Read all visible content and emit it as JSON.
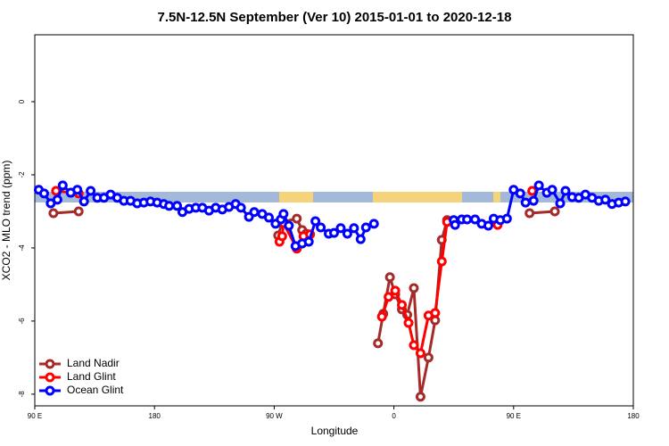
{
  "chart_data": {
    "type": "line",
    "title": "7.5N-12.5N September (Ver 10)   2015-01-01 to 2020-12-18",
    "x_label": "Longitude",
    "y_label": "XCO2 - MLO trend (ppm)",
    "xlim": [
      90,
      540
    ],
    "ylim": [
      -8.32,
      1.83
    ],
    "xticks": [
      {
        "value": 90,
        "label": "90 E"
      },
      180,
      {
        "value": 270,
        "label": "90 W"
      },
      {
        "value": 360,
        "label": "0"
      },
      {
        "value": 450,
        "label": "90 E"
      },
      {
        "value": 540,
        "label": "180"
      }
    ],
    "yticks": [
      0,
      -2,
      -4,
      -6,
      -8
    ],
    "legend": "bottom-left",
    "series": [
      {
        "name": "Land Nadir",
        "color": "#a52a2a",
        "x": [
          104,
          123,
          200,
          273,
          276,
          287,
          291,
          294,
          320,
          348,
          352,
          357,
          361,
          366,
          370,
          375,
          380,
          386,
          391,
          396,
          400,
          430,
          462,
          481
        ],
        "values": [
          -3.05,
          -3.0,
          null,
          -3.66,
          -3.29,
          -3.2,
          -3.51,
          -3.61,
          null,
          -6.61,
          -5.8,
          -4.8,
          -5.27,
          -5.68,
          -5.83,
          -5.1,
          -8.07,
          -7.0,
          -5.98,
          -3.78,
          -3.24,
          null,
          -3.05,
          -3.0
        ]
      },
      {
        "name": "Land Glint",
        "color": "#ff0000",
        "x": [
          106,
          123,
          200,
          274,
          276,
          277,
          287,
          292,
          297,
          320,
          351,
          356,
          361,
          366,
          371,
          375,
          380,
          386,
          391,
          396,
          400,
          406,
          420,
          438,
          450,
          464
        ],
        "values": [
          -2.44,
          -2.51,
          null,
          -3.83,
          -3.68,
          -3.32,
          -4.02,
          -3.68,
          -3.63,
          null,
          -5.88,
          -5.34,
          -5.17,
          -5.56,
          -6.05,
          -6.66,
          -6.88,
          -5.85,
          -5.78,
          -4.37,
          -3.29,
          -3.29,
          null,
          -3.37,
          null,
          -2.44
        ]
      },
      {
        "name": "Ocean Glint",
        "color": "#0000ff",
        "x": [
          93,
          97,
          102,
          107,
          111,
          117,
          122,
          127,
          132,
          137,
          142,
          147,
          152,
          157,
          162,
          167,
          172,
          177,
          182,
          187,
          191,
          197,
          201,
          206,
          211,
          216,
          221,
          226,
          231,
          236,
          241,
          245,
          251,
          255,
          261,
          266,
          271,
          275,
          277,
          281,
          286,
          291,
          296,
          301,
          305,
          311,
          315,
          320,
          325,
          330,
          335,
          339,
          345,
          375,
          405,
          406,
          411,
          415,
          421,
          426,
          431,
          435,
          440,
          445,
          450,
          455,
          459,
          465,
          469,
          475,
          479,
          485,
          489,
          494,
          499,
          504,
          509,
          514,
          519,
          524,
          529,
          534
        ],
        "values": [
          -2.41,
          -2.51,
          -2.78,
          -2.68,
          -2.29,
          -2.49,
          -2.41,
          -2.73,
          -2.44,
          -2.63,
          -2.63,
          -2.54,
          -2.63,
          -2.71,
          -2.71,
          -2.78,
          -2.76,
          -2.73,
          -2.76,
          -2.8,
          -2.85,
          -2.85,
          -3.02,
          -2.93,
          -2.9,
          -2.9,
          -2.98,
          -2.9,
          -2.95,
          -2.88,
          -2.8,
          -2.9,
          -3.15,
          -3.02,
          -3.07,
          -3.17,
          -3.34,
          -3.22,
          -3.07,
          -3.39,
          -3.95,
          -3.88,
          -3.83,
          -3.27,
          -3.44,
          -3.61,
          -3.59,
          -3.46,
          -3.61,
          -3.46,
          -3.76,
          -3.44,
          -3.34,
          null,
          -3.24,
          -3.37,
          -3.22,
          -3.22,
          -3.22,
          -3.34,
          -3.39,
          -3.2,
          -3.24,
          -3.2,
          -2.41,
          -2.51,
          -2.76,
          -2.71,
          -2.29,
          -2.49,
          -2.41,
          -2.78,
          -2.44,
          -2.61,
          -2.63,
          -2.54,
          -2.63,
          -2.71,
          -2.68,
          -2.8,
          -2.76,
          -2.73
        ]
      }
    ]
  }
}
